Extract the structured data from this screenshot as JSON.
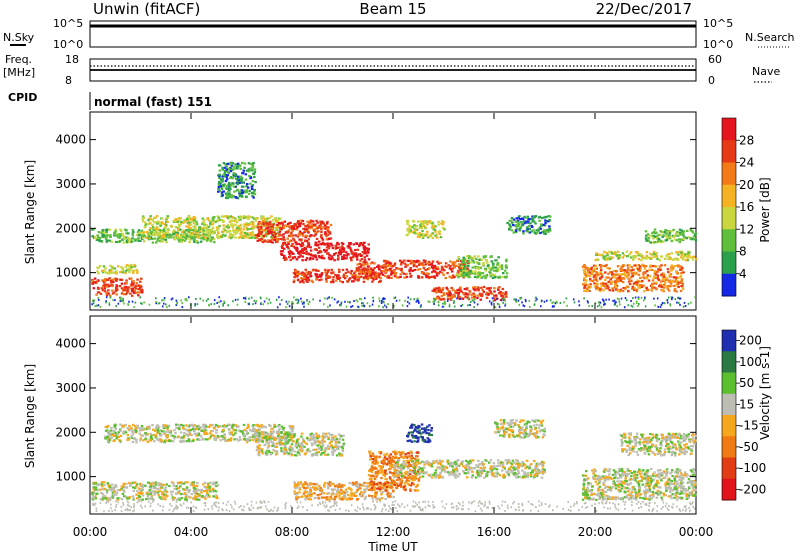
{
  "header": {
    "station": "Unwin (fitACF)",
    "beam": "Beam 15",
    "date": "22/Dec/2017"
  },
  "status_panels": {
    "nsky_label": "N.Sky",
    "nsearch_label": "N.Search",
    "noise_ticks": [
      "10^5",
      "10^0"
    ],
    "freq_label": "Freq.",
    "freq_unit": "[MHz]",
    "freq_ticks": [
      "18",
      "8"
    ],
    "nave_label": "Nave",
    "nave_ticks": [
      "60",
      "0"
    ],
    "cpid_label": "CPID",
    "cpid_value": "normal (fast) 151"
  },
  "chart_data": [
    {
      "type": "heatmap",
      "name": "power",
      "ylabel": "Slant Range [km]",
      "ylim": [
        180,
        4600
      ],
      "yticks": [
        "1000",
        "2000",
        "3000",
        "4000"
      ],
      "xlim": [
        0,
        24
      ],
      "colorbar": {
        "label": "Power [dB]",
        "ticks": [
          "4",
          "8",
          "12",
          "16",
          "20",
          "24",
          "28"
        ],
        "colors": [
          "#1428e6",
          "#2ba04a",
          "#5fbf3b",
          "#c9d640",
          "#f5b324",
          "#f27a18",
          "#e63a16",
          "#e6141e"
        ]
      },
      "regions": [
        {
          "t": [
            0.0,
            2.0
          ],
          "r": [
            500,
            900
          ],
          "level": 6
        },
        {
          "t": [
            0.2,
            1.8
          ],
          "r": [
            1000,
            1200
          ],
          "level": 3
        },
        {
          "t": [
            0.0,
            5.0
          ],
          "r": [
            1700,
            2000
          ],
          "level": 2
        },
        {
          "t": [
            2.0,
            7.5
          ],
          "r": [
            1800,
            2300
          ],
          "level": 3
        },
        {
          "t": [
            6.5,
            9.5
          ],
          "r": [
            1700,
            2200
          ],
          "level": 6
        },
        {
          "t": [
            7.5,
            11.0
          ],
          "r": [
            1300,
            1700
          ],
          "level": 7
        },
        {
          "t": [
            8.0,
            11.5
          ],
          "r": [
            800,
            1100
          ],
          "level": 6
        },
        {
          "t": [
            10.5,
            15.0
          ],
          "r": [
            900,
            1300
          ],
          "level": 6
        },
        {
          "t": [
            13.5,
            16.5
          ],
          "r": [
            400,
            700
          ],
          "level": 6
        },
        {
          "t": [
            12.5,
            14.0
          ],
          "r": [
            1800,
            2200
          ],
          "level": 3
        },
        {
          "t": [
            14.5,
            16.5
          ],
          "r": [
            900,
            1400
          ],
          "level": 2
        },
        {
          "t": [
            16.5,
            18.2
          ],
          "r": [
            1900,
            2300
          ],
          "level": 1
        },
        {
          "t": [
            19.5,
            23.5
          ],
          "r": [
            600,
            1200
          ],
          "level": 5
        },
        {
          "t": [
            20.0,
            24.0
          ],
          "r": [
            1300,
            1500
          ],
          "level": 3
        },
        {
          "t": [
            22.0,
            24.0
          ],
          "r": [
            1700,
            2000
          ],
          "level": 2
        },
        {
          "t": [
            5.0,
            6.5
          ],
          "r": [
            2700,
            3500
          ],
          "level": 1
        }
      ]
    },
    {
      "type": "heatmap",
      "name": "velocity",
      "ylabel": "Slant Range [km]",
      "ylim": [
        180,
        4600
      ],
      "yticks": [
        "1000",
        "2000",
        "3000",
        "4000"
      ],
      "xlim": [
        0,
        24
      ],
      "xticks": [
        "00:00",
        "04:00",
        "08:00",
        "12:00",
        "16:00",
        "20:00",
        "00:00"
      ],
      "xlabel": "Time UT",
      "colorbar": {
        "label": "Velocity [m s-1]",
        "ticks": [
          "200",
          "100",
          "50",
          "15",
          "-15",
          "-50",
          "-100",
          "-200"
        ],
        "colors": [
          "#1f2fb0",
          "#2a7a42",
          "#5cbf30",
          "#bdbdb3",
          "#f5a81e",
          "#f07a14",
          "#e23c14",
          "#e0141a"
        ]
      },
      "regions": [
        {
          "t": [
            0.0,
            5.0
          ],
          "r": [
            500,
            900
          ],
          "level": 3
        },
        {
          "t": [
            0.5,
            8.0
          ],
          "r": [
            1800,
            2200
          ],
          "level": 3
        },
        {
          "t": [
            6.5,
            10.0
          ],
          "r": [
            1500,
            2000
          ],
          "level": 3
        },
        {
          "t": [
            8.0,
            12.0
          ],
          "r": [
            500,
            900
          ],
          "level": 4
        },
        {
          "t": [
            11.0,
            13.0
          ],
          "r": [
            700,
            1600
          ],
          "level": 5
        },
        {
          "t": [
            12.0,
            18.0
          ],
          "r": [
            1000,
            1400
          ],
          "level": 3
        },
        {
          "t": [
            12.5,
            13.5
          ],
          "r": [
            1800,
            2200
          ],
          "level": 0
        },
        {
          "t": [
            16.0,
            18.0
          ],
          "r": [
            1900,
            2300
          ],
          "level": 3
        },
        {
          "t": [
            19.5,
            24.0
          ],
          "r": [
            500,
            1200
          ],
          "level": 3
        },
        {
          "t": [
            21.0,
            24.0
          ],
          "r": [
            1500,
            2000
          ],
          "level": 3
        }
      ]
    }
  ]
}
